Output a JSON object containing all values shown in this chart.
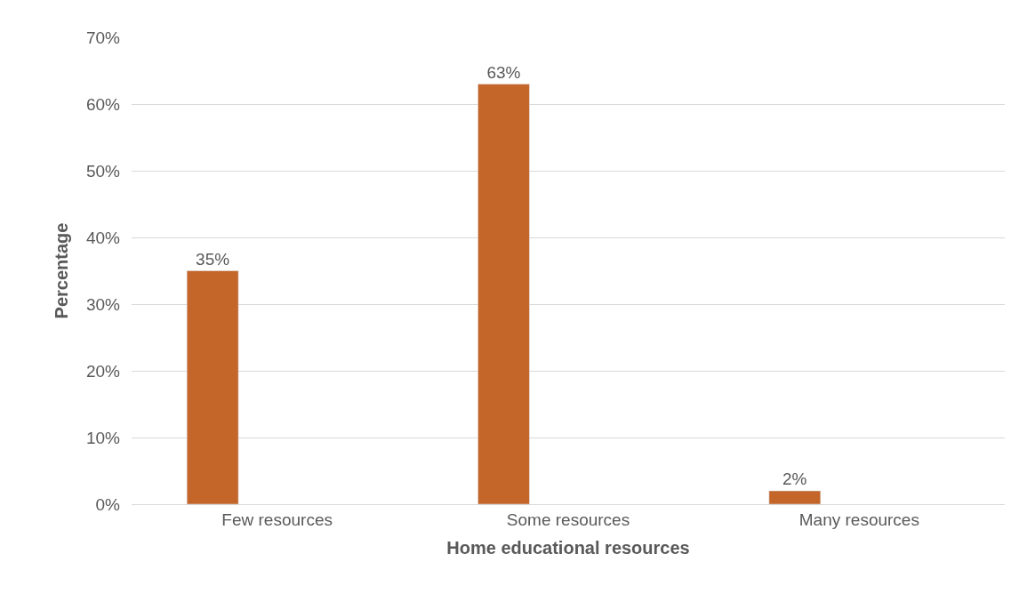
{
  "chart_data": {
    "type": "bar",
    "categories": [
      "Few resources",
      "Some resources",
      "Many resources"
    ],
    "values": [
      35,
      63,
      2
    ],
    "color": "#c4652a",
    "value_labels": [
      "35%",
      "63%",
      "2%"
    ],
    "xlabel": "Home educational resources",
    "ylabel": "Percentage",
    "ylim": [
      0,
      70
    ],
    "yticks": [
      {
        "value": 0,
        "label": "0%"
      },
      {
        "value": 10,
        "label": "10%"
      },
      {
        "value": 20,
        "label": "20%"
      },
      {
        "value": 30,
        "label": "30%"
      },
      {
        "value": 40,
        "label": "40%"
      },
      {
        "value": 50,
        "label": "50%"
      },
      {
        "value": 60,
        "label": "60%"
      },
      {
        "value": 70,
        "label": "70%"
      }
    ],
    "grid": "y"
  }
}
